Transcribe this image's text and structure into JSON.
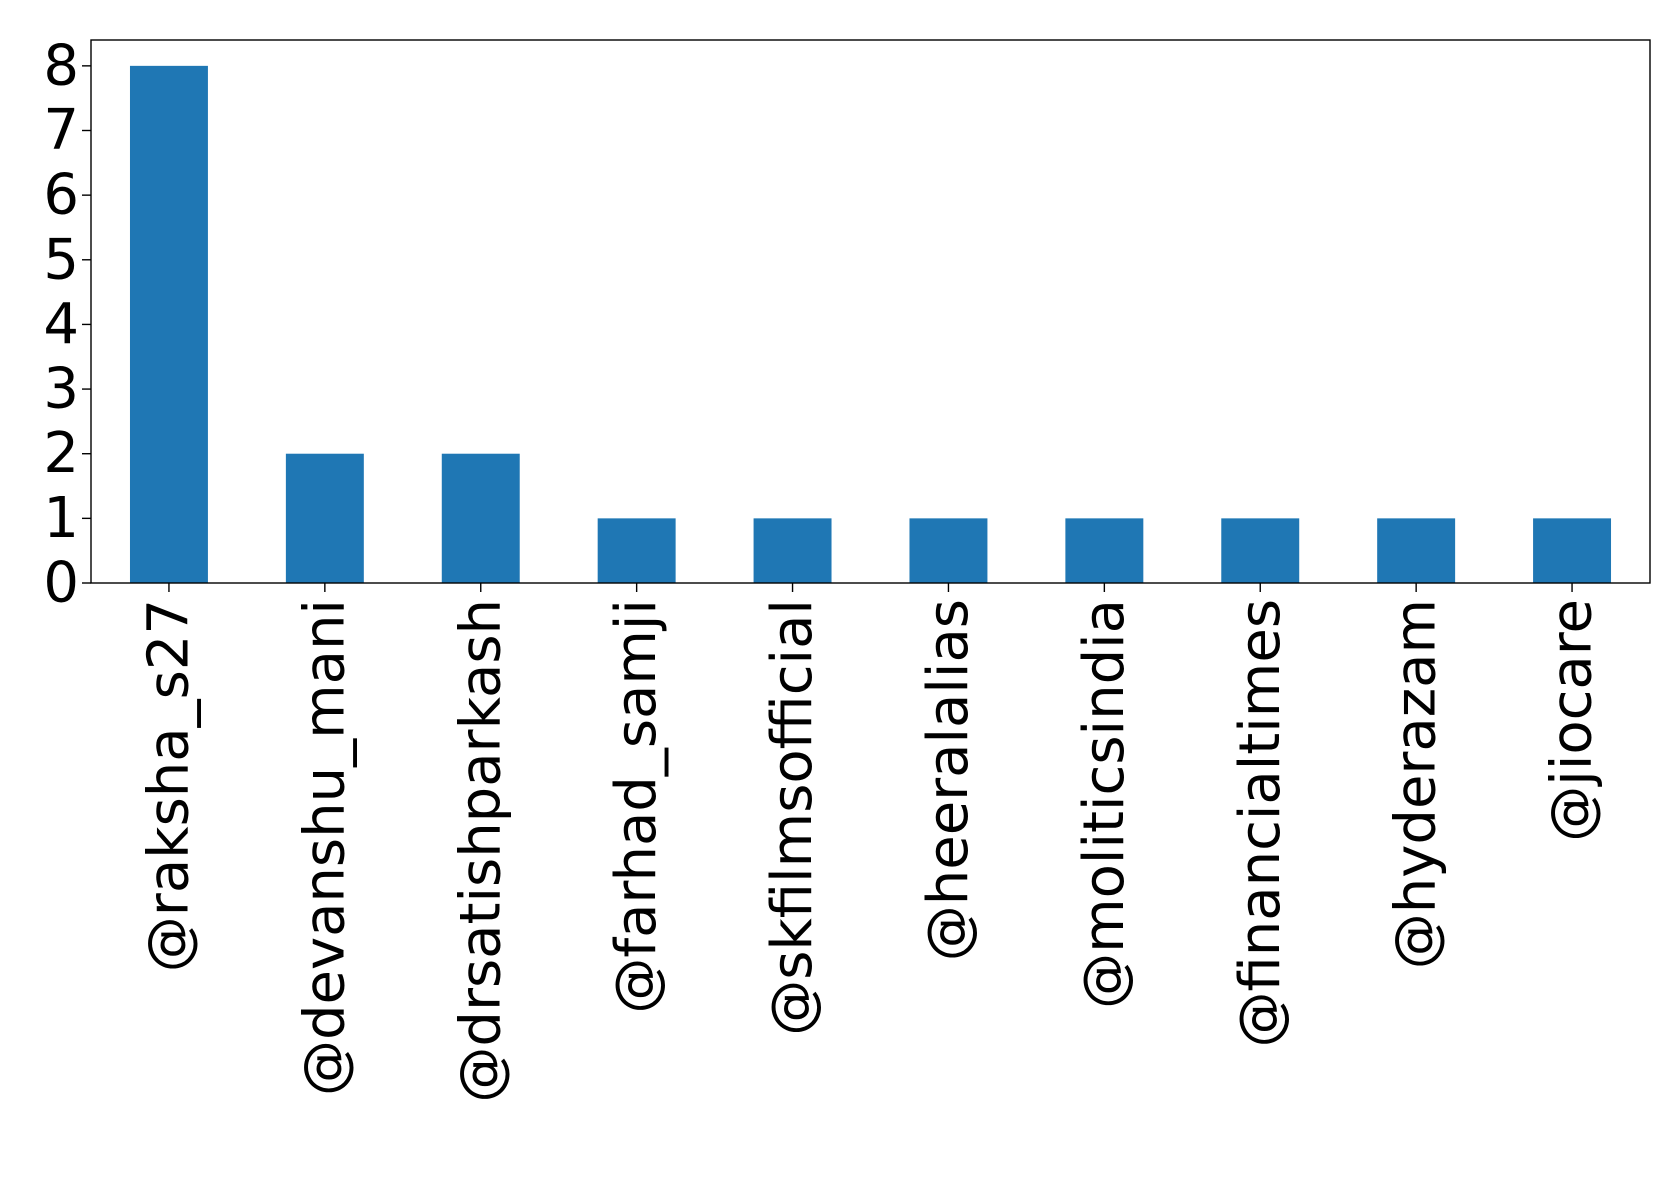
{
  "chart_data": {
    "type": "bar",
    "title": "",
    "xlabel": "",
    "ylabel": "",
    "categories": [
      "@raksha_s27",
      "@devanshu_mani",
      "@drsatishparkash",
      "@farhad_samji",
      "@skfilmsofficial",
      "@heeralalias",
      "@moliticsindia",
      "@financialtimes",
      "@hyderazam",
      "@jiocare"
    ],
    "values": [
      8,
      2,
      2,
      1,
      1,
      1,
      1,
      1,
      1,
      1
    ],
    "ylim": [
      0,
      8.4
    ],
    "yticks": [
      0,
      1,
      2,
      3,
      4,
      5,
      6,
      7,
      8
    ],
    "grid": false,
    "legend": "none",
    "bar_color": "#1f77b4"
  }
}
